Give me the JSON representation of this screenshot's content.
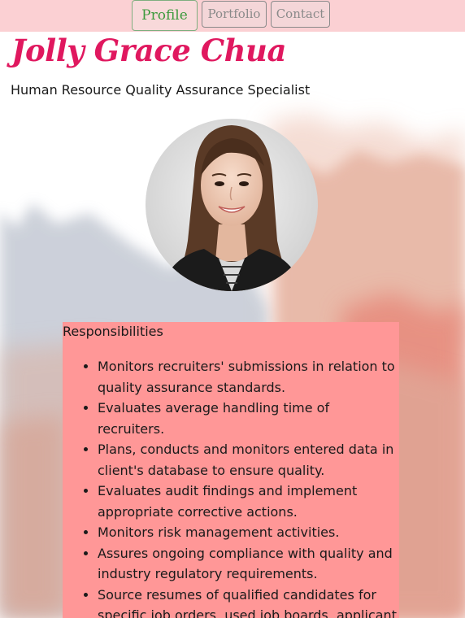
{
  "nav": {
    "items": [
      {
        "label": "Profile",
        "active": true
      },
      {
        "label": "Portfolio",
        "active": false
      },
      {
        "label": "Contact",
        "active": false
      }
    ]
  },
  "profile": {
    "name": "Jolly Grace Chua",
    "title": "Human Resource Quality Assurance Specialist",
    "photo_icon": "profile-photo"
  },
  "responsibilities": {
    "heading": "Responsibilities",
    "items": [
      "Monitors recruiters' submissions in relation to quality assurance standards.",
      "Evaluates average handling time of recruiters.",
      "Plans, conducts and monitors entered data in client's database to ensure quality.",
      "Evaluates audit findings and implement appropriate corrective actions.",
      "Monitors risk management activities.",
      "Assures ongoing compliance with quality and industry regulatory requirements.",
      "Source resumes of qualified candidates for specific job orders, used job boards, applicant tracking systems, company websites, etc."
    ]
  },
  "colors": {
    "nav_background": "#fbd0d3",
    "name_color": "#e0185f",
    "panel_background": "#ff9797",
    "active_nav_text": "#3d9a3d"
  }
}
